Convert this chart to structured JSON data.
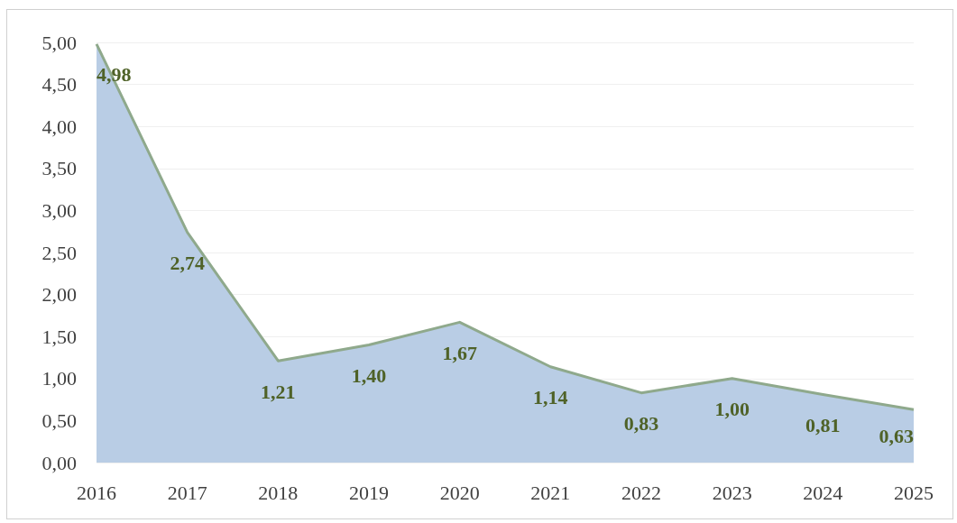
{
  "chart_data": {
    "type": "area",
    "categories": [
      "2016",
      "2017",
      "2018",
      "2019",
      "2020",
      "2021",
      "2022",
      "2023",
      "2024",
      "2025"
    ],
    "values": [
      4.98,
      2.74,
      1.21,
      1.4,
      1.67,
      1.14,
      0.83,
      1.0,
      0.81,
      0.63
    ],
    "value_labels": [
      "4,98",
      "2,74",
      "1,21",
      "1,40",
      "1,67",
      "1,14",
      "0,83",
      "1,00",
      "0,81",
      "0,63"
    ],
    "color": "#b9cde5",
    "ylim": [
      0,
      5
    ],
    "yticks": [
      {
        "value": 0,
        "label": "0,00"
      },
      {
        "value": 0.5,
        "label": "0,50"
      },
      {
        "value": 1,
        "label": "1,00"
      },
      {
        "value": 1.5,
        "label": "1,50"
      },
      {
        "value": 2,
        "label": "2,00"
      },
      {
        "value": 2.5,
        "label": "2,50"
      },
      {
        "value": 3,
        "label": "3,00"
      },
      {
        "value": 3.5,
        "label": "3,50"
      },
      {
        "value": 4,
        "label": "4,00"
      },
      {
        "value": 4.5,
        "label": "4,50"
      },
      {
        "value": 5,
        "label": "5,00"
      }
    ],
    "grid": "y"
  }
}
